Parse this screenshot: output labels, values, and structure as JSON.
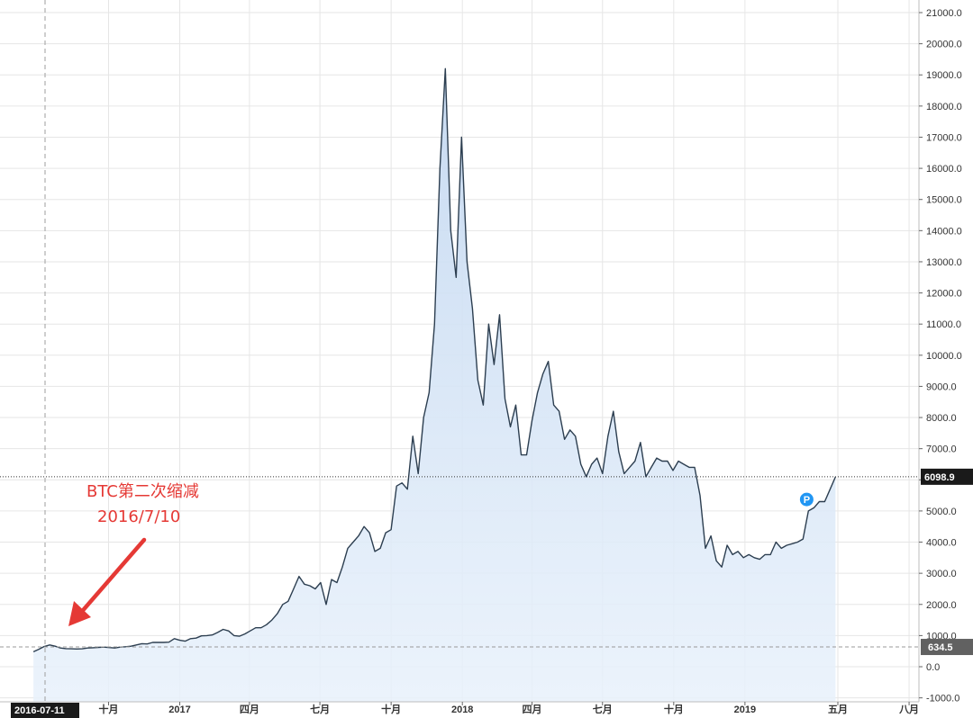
{
  "chart_data": {
    "type": "area",
    "series": [
      {
        "x": [
          "2016-06-26",
          "2016-07-03",
          "2016-07-10",
          "2016-07-17",
          "2016-07-24",
          "2016-07-31",
          "2016-08-07",
          "2016-08-14",
          "2016-08-21",
          "2016-08-28",
          "2016-09-04",
          "2016-09-11",
          "2016-09-18",
          "2016-09-25",
          "2016-10-02",
          "2016-10-09",
          "2016-10-16",
          "2016-10-23",
          "2016-10-30",
          "2016-11-06",
          "2016-11-13",
          "2016-11-20",
          "2016-11-27",
          "2016-12-04",
          "2016-12-11",
          "2016-12-18",
          "2016-12-25",
          "2017-01-01",
          "2017-01-08",
          "2017-01-15",
          "2017-01-22",
          "2017-01-29",
          "2017-02-05",
          "2017-02-12",
          "2017-02-19",
          "2017-02-26",
          "2017-03-05",
          "2017-03-12",
          "2017-03-19",
          "2017-03-26",
          "2017-04-02",
          "2017-04-09",
          "2017-04-16",
          "2017-04-23",
          "2017-04-30",
          "2017-05-07",
          "2017-05-14",
          "2017-05-21",
          "2017-05-28",
          "2017-06-04",
          "2017-06-11",
          "2017-06-18",
          "2017-06-25",
          "2017-07-02",
          "2017-07-09",
          "2017-07-16",
          "2017-07-23",
          "2017-07-30",
          "2017-08-06",
          "2017-08-13",
          "2017-08-20",
          "2017-08-27",
          "2017-09-03",
          "2017-09-10",
          "2017-09-17",
          "2017-09-24",
          "2017-10-01",
          "2017-10-08",
          "2017-10-15",
          "2017-10-22",
          "2017-10-29",
          "2017-11-05",
          "2017-11-12",
          "2017-11-19",
          "2017-11-26",
          "2017-12-03",
          "2017-12-10",
          "2017-12-17",
          "2017-12-24",
          "2017-12-31",
          "2018-01-07",
          "2018-01-14",
          "2018-01-21",
          "2018-01-28",
          "2018-02-04",
          "2018-02-11",
          "2018-02-18",
          "2018-02-25",
          "2018-03-04",
          "2018-03-11",
          "2018-03-18",
          "2018-03-25",
          "2018-04-01",
          "2018-04-08",
          "2018-04-15",
          "2018-04-22",
          "2018-04-29",
          "2018-05-06",
          "2018-05-13",
          "2018-05-20",
          "2018-05-27",
          "2018-06-03",
          "2018-06-10",
          "2018-06-17",
          "2018-06-24",
          "2018-07-01",
          "2018-07-08",
          "2018-07-15",
          "2018-07-22",
          "2018-07-29",
          "2018-08-05",
          "2018-08-12",
          "2018-08-19",
          "2018-08-26",
          "2018-09-02",
          "2018-09-09",
          "2018-09-16",
          "2018-09-23",
          "2018-09-30",
          "2018-10-07",
          "2018-10-14",
          "2018-10-21",
          "2018-10-28",
          "2018-11-04",
          "2018-11-11",
          "2018-11-18",
          "2018-11-25",
          "2018-12-02",
          "2018-12-09",
          "2018-12-16",
          "2018-12-23",
          "2018-12-30",
          "2019-01-06",
          "2019-01-13",
          "2019-01-20",
          "2019-01-27",
          "2019-02-03",
          "2019-02-10",
          "2019-02-17",
          "2019-02-24",
          "2019-03-03",
          "2019-03-10",
          "2019-03-17",
          "2019-03-24",
          "2019-03-31",
          "2019-04-07",
          "2019-04-14",
          "2019-04-21",
          "2019-04-28"
        ],
        "values": [
          480,
          560,
          650,
          700,
          660,
          600,
          580,
          575,
          570,
          575,
          600,
          610,
          620,
          630,
          615,
          600,
          630,
          640,
          660,
          700,
          740,
          730,
          780,
          780,
          780,
          790,
          900,
          850,
          820,
          900,
          920,
          990,
          1000,
          1020,
          1100,
          1200,
          1150,
          1000,
          980,
          1050,
          1150,
          1250,
          1250,
          1350,
          1500,
          1700,
          2000,
          2100,
          2500,
          2900,
          2650,
          2600,
          2500,
          2700,
          2000,
          2800,
          2700,
          3200,
          3800,
          4000,
          4200,
          4500,
          4300,
          3700,
          3800,
          4300,
          4400,
          5800,
          5900,
          5700,
          7400,
          6200,
          8000,
          8800,
          11000,
          16000,
          19200,
          14000,
          12500,
          17000,
          13000,
          11500,
          9200,
          8400,
          11000,
          9700,
          11300,
          8600,
          7700,
          8400,
          6800,
          6800,
          7900,
          8800,
          9400,
          9800,
          8400,
          8200,
          7300,
          7600,
          7400,
          6500,
          6100,
          6500,
          6700,
          6200,
          7400,
          8200,
          6900,
          6200,
          6400,
          6600,
          7200,
          6100,
          6400,
          6700,
          6600,
          6600,
          6300,
          6600,
          6500,
          6400,
          6400,
          5500,
          3800,
          4200,
          3400,
          3200,
          3900,
          3600,
          3700,
          3500,
          3600,
          3500,
          3450,
          3600,
          3600,
          4000,
          3800,
          3900,
          3950,
          4000,
          4100,
          5000,
          5100,
          5300,
          5300,
          5700,
          6098.9
        ]
      }
    ],
    "y_ticks": [
      "21000.0",
      "20000.0",
      "19000.0",
      "18000.0",
      "17000.0",
      "16000.0",
      "15000.0",
      "14000.0",
      "13000.0",
      "12000.0",
      "11000.0",
      "10000.0",
      "9000.0",
      "8000.0",
      "7000.0",
      "6000.0",
      "5000.0",
      "4000.0",
      "3000.0",
      "2000.0",
      "1000.0",
      "0.0",
      "-1000.0"
    ],
    "ylim": [
      -1000,
      21000
    ],
    "x_ticks": [
      {
        "date": "2016-10-01",
        "label": "十月"
      },
      {
        "date": "2017-01-01",
        "label": "2017"
      },
      {
        "date": "2017-04-01",
        "label": "四月"
      },
      {
        "date": "2017-07-01",
        "label": "七月"
      },
      {
        "date": "2017-10-01",
        "label": "十月"
      },
      {
        "date": "2018-01-01",
        "label": "2018"
      },
      {
        "date": "2018-04-01",
        "label": "四月"
      },
      {
        "date": "2018-07-01",
        "label": "七月"
      },
      {
        "date": "2018-10-01",
        "label": "十月"
      },
      {
        "date": "2019-01-01",
        "label": "2019"
      },
      {
        "date": "2019-05-01",
        "label": "五月"
      },
      {
        "date": "2019-08-01",
        "label": "八月"
      }
    ],
    "crosshair": {
      "date": "2016-07-11",
      "label": "2016-07-11"
    },
    "last_price": {
      "value": 6098.9,
      "label": "6098.9"
    },
    "reference_price": {
      "value": 634.5,
      "label": "634.5"
    },
    "marker": {
      "date": "2019-04-14",
      "value": 5600,
      "label": "P"
    },
    "annotation": {
      "line1": "BTC第二次缩减",
      "line2": "2016/7/10"
    },
    "colors": {
      "line": "#2c3e50",
      "fill_top": "#c5d9f1",
      "fill_bottom": "#e8f1fb",
      "grid": "#e6e6e6",
      "price_tag": "#1a1a1a",
      "annotation": "#e53935",
      "marker": "#2196f3"
    },
    "grid": true
  }
}
